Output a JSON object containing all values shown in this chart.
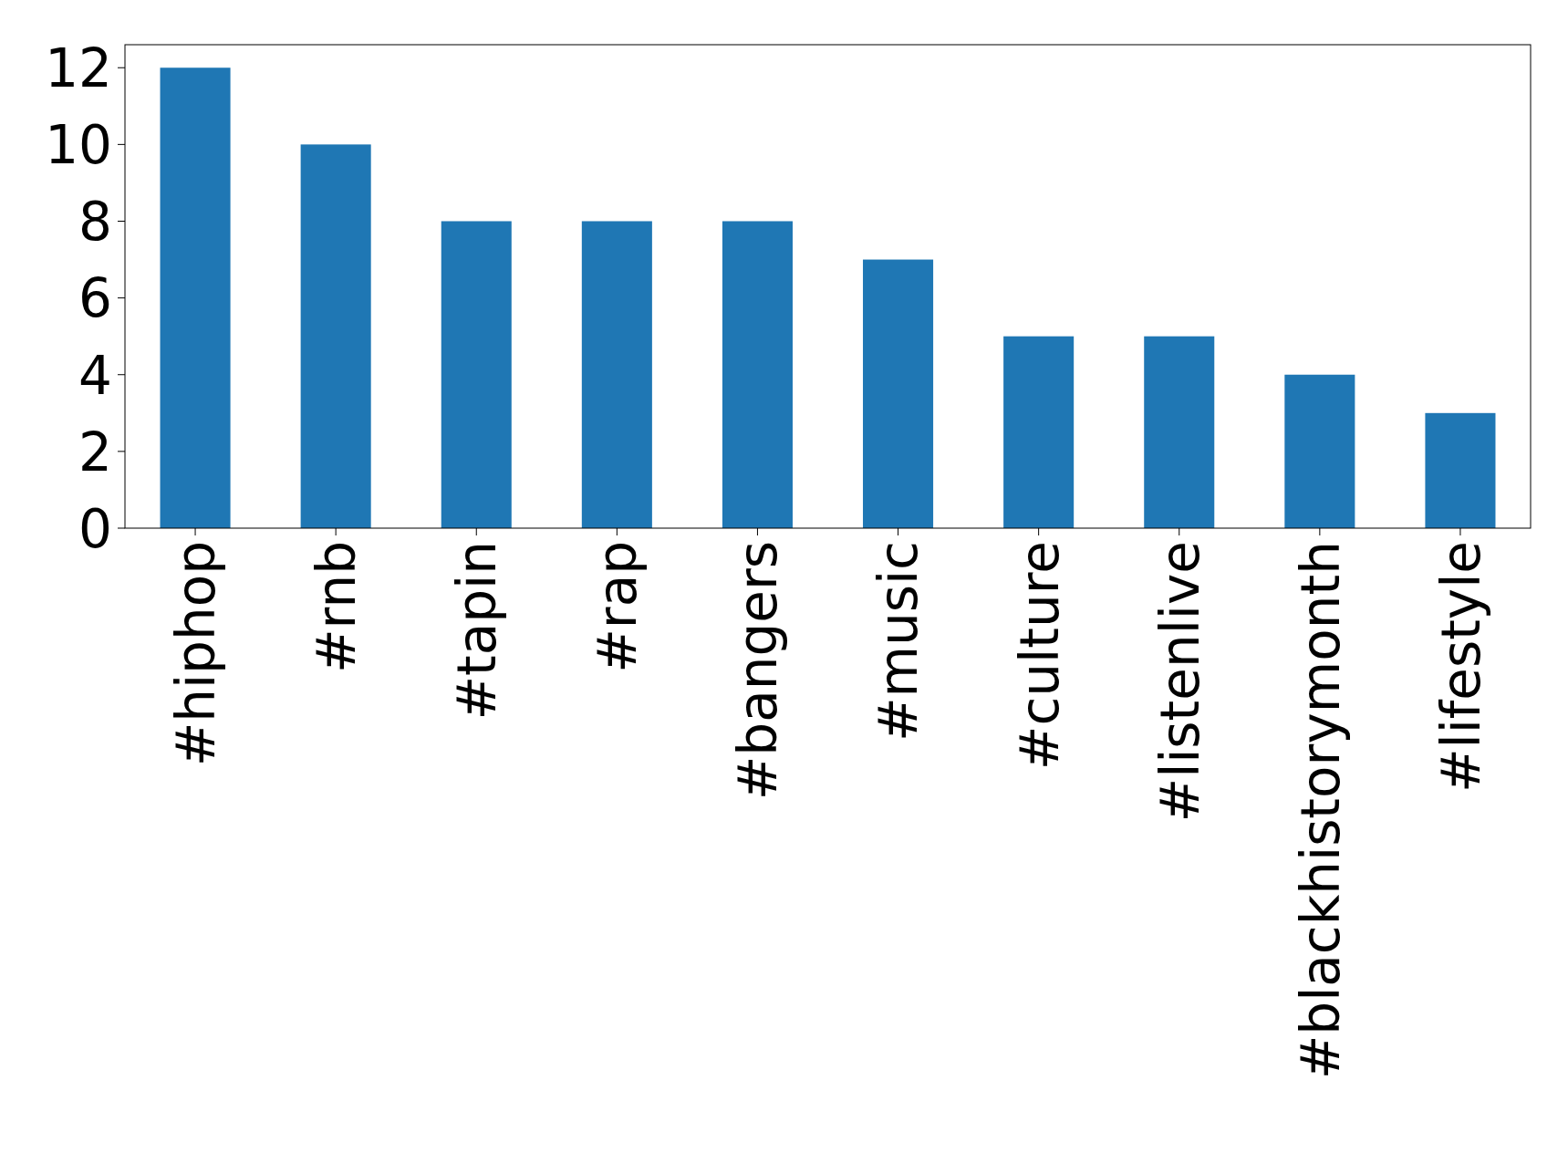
{
  "chart_data": {
    "type": "bar",
    "categories": [
      "#hiphop",
      "#rnb",
      "#tapin",
      "#rap",
      "#bangers",
      "#music",
      "#culture",
      "#listenlive",
      "#blackhistorymonth",
      "#lifestyle"
    ],
    "values": [
      12,
      10,
      8,
      8,
      8,
      7,
      5,
      5,
      4,
      3
    ],
    "color": "#1f77b4",
    "ylim": [
      0,
      12.6
    ],
    "yticks": [
      0,
      2,
      4,
      6,
      8,
      10,
      12
    ],
    "grid": false
  }
}
